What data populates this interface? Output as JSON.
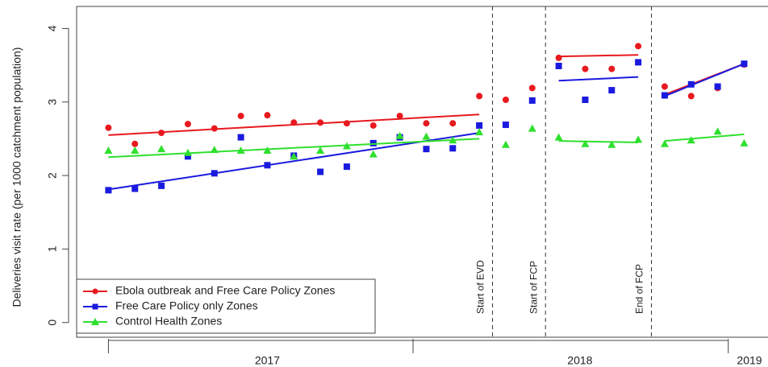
{
  "chart_data": {
    "type": "scatter",
    "y_label": "Deliveries visit rate (per 1000 catchment population)",
    "xlim": [
      -0.2,
      25.9
    ],
    "ylim": [
      -0.2,
      4.3
    ],
    "yticks": [
      0,
      1,
      2,
      3,
      4
    ],
    "xticks": [
      1,
      12.5,
      24.4
    ],
    "xlabels": [
      {
        "value": 7,
        "label": "2017"
      },
      {
        "value": 18.8,
        "label": "2018"
      },
      {
        "value": 25.2,
        "label": "2019"
      }
    ],
    "events": [
      {
        "value": 15.5,
        "label": "Start of EVD"
      },
      {
        "value": 17.5,
        "label": "Start of FCP"
      },
      {
        "value": 21.5,
        "label": "End of FCP"
      }
    ],
    "x": [
      1,
      2,
      3,
      4,
      5,
      6,
      7,
      8,
      9,
      10,
      11,
      12,
      13,
      14,
      15,
      16,
      17,
      18,
      19,
      20,
      21,
      22,
      23,
      24,
      25
    ],
    "series": [
      {
        "name": "Ebola outbreak and Free Care Policy Zones",
        "color": "#e8191e",
        "marker": "circle",
        "values": [
          2.65,
          2.43,
          2.58,
          2.7,
          2.64,
          2.81,
          2.82,
          2.72,
          2.72,
          2.71,
          2.68,
          2.81,
          2.71,
          2.71,
          3.08,
          3.03,
          3.19,
          3.6,
          3.45,
          3.45,
          3.76,
          3.21,
          3.08,
          3.19,
          3.51
        ],
        "trend": [
          {
            "x": [
              1,
              15
            ],
            "values": [
              2.55,
              2.83
            ]
          },
          {
            "x": [
              18,
              21
            ],
            "values": [
              3.62,
              3.64
            ]
          },
          {
            "x": [
              22,
              25
            ],
            "values": [
              3.1,
              3.52
            ]
          }
        ]
      },
      {
        "name": "Free Care Policy only Zones",
        "color": "#1a1adf",
        "marker": "square",
        "values": [
          1.8,
          1.82,
          1.86,
          2.26,
          2.03,
          2.52,
          2.14,
          2.27,
          2.05,
          2.12,
          2.44,
          2.52,
          2.36,
          2.37,
          2.68,
          2.69,
          3.02,
          3.49,
          3.03,
          3.16,
          3.54,
          3.09,
          3.24,
          3.21,
          3.52
        ],
        "trend": [
          {
            "x": [
              1,
              15
            ],
            "values": [
              1.81,
              2.58
            ]
          },
          {
            "x": [
              18,
              21
            ],
            "values": [
              3.29,
              3.34
            ]
          },
          {
            "x": [
              22,
              25
            ],
            "values": [
              3.08,
              3.52
            ]
          }
        ]
      },
      {
        "name": "Control Health Zones",
        "color": "#2ee02e",
        "marker": "triangle",
        "values": [
          2.34,
          2.34,
          2.36,
          2.31,
          2.35,
          2.34,
          2.34,
          2.26,
          2.34,
          2.4,
          2.29,
          2.54,
          2.53,
          2.48,
          2.59,
          2.42,
          2.64,
          2.52,
          2.43,
          2.42,
          2.49,
          2.43,
          2.48,
          2.6,
          2.44
        ],
        "trend": [
          {
            "x": [
              1,
              15
            ],
            "values": [
              2.25,
              2.5
            ]
          },
          {
            "x": [
              18,
              21
            ],
            "values": [
              2.47,
              2.45
            ]
          },
          {
            "x": [
              22,
              25
            ],
            "values": [
              2.47,
              2.56
            ]
          }
        ]
      }
    ]
  }
}
